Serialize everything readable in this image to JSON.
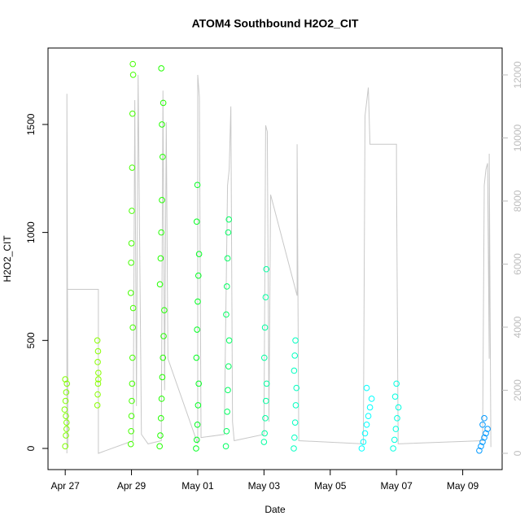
{
  "chart_data": {
    "type": "scatter",
    "title": "ATOM4 Southbound H2O2_CIT",
    "xlabel": "Date",
    "ylabel": "H2O2_CIT",
    "xlim": [
      -0.52,
      13.19
    ],
    "xticks": [
      {
        "value": 0,
        "label": "Apr 27"
      },
      {
        "value": 2,
        "label": "Apr 29"
      },
      {
        "value": 4,
        "label": "May 01"
      },
      {
        "value": 6,
        "label": "May 03"
      },
      {
        "value": 8,
        "label": "May 05"
      },
      {
        "value": 10,
        "label": "May 07"
      },
      {
        "value": 12,
        "label": "May 09"
      }
    ],
    "ylim": [
      -98,
      1854
    ],
    "yticks": [
      0,
      500,
      1000,
      1500
    ],
    "y2lim": [
      -516,
      12852
    ],
    "y2ticks": [
      0,
      2000,
      4000,
      6000,
      8000,
      10000,
      12000
    ],
    "series": [
      {
        "type": "line",
        "axis": "y2",
        "color": "#c8c8c8",
        "x": [
          0.05,
          0.05,
          0.08,
          0.05,
          1.0,
          1.0,
          2.05,
          2.1,
          2.15,
          2.2,
          2.3,
          2.5,
          2.9,
          2.95,
          3.0,
          3.05,
          3.1,
          4.0,
          4.0,
          4.05,
          4.1,
          4.8,
          4.9,
          4.95,
          5.0,
          5.05,
          5.1,
          6.0,
          6.05,
          6.1,
          6.15,
          6.2,
          7.0,
          7.0,
          7.05,
          9.0,
          9.05,
          9.15,
          9.2,
          10.0,
          10.0,
          10.05,
          12.6,
          12.65,
          12.7,
          12.75,
          12.8,
          12.8,
          12.85
        ],
        "values": [
          0,
          11400,
          200,
          5200,
          5200,
          0,
          400,
          11200,
          1500,
          12000,
          600,
          300,
          400,
          11500,
          2000,
          10500,
          3000,
          300,
          12000,
          11300,
          500,
          600,
          8500,
          9000,
          11000,
          1000,
          400,
          600,
          10400,
          10200,
          1000,
          8200,
          5000,
          9800,
          400,
          300,
          10700,
          11600,
          9800,
          9800,
          9000,
          300,
          400,
          8500,
          9000,
          9200,
          3000,
          9500,
          200
        ]
      },
      {
        "color": "#80ff00",
        "x": [
          0.0,
          0.02,
          0.04,
          -0.02,
          0.01,
          0.03,
          0.05,
          0.0,
          0.02,
          0.04
        ],
        "values": [
          10,
          60,
          120,
          180,
          220,
          260,
          300,
          320,
          150,
          90
        ]
      },
      {
        "color": "#88ff00",
        "x": [
          0.97,
          0.98,
          0.99,
          1.0,
          0.98,
          0.99,
          0.97,
          1.0
        ],
        "values": [
          200,
          250,
          300,
          350,
          400,
          450,
          500,
          320
        ]
      },
      {
        "color": "#44ff00",
        "x": [
          1.98,
          1.99,
          2.0,
          2.01,
          2.02,
          2.03,
          2.04,
          2.05,
          1.98,
          1.99,
          2.0,
          2.01,
          2.02,
          2.03,
          2.04,
          2.05
        ],
        "values": [
          20,
          80,
          150,
          220,
          300,
          420,
          560,
          650,
          720,
          860,
          950,
          1100,
          1300,
          1550,
          1780,
          1730
        ]
      },
      {
        "color": "#22ff00",
        "x": [
          2.85,
          2.87,
          2.89,
          2.91,
          2.93,
          2.95,
          2.97,
          2.99,
          2.86,
          2.88,
          2.9,
          2.92,
          2.94,
          2.96,
          2.9,
          2.92
        ],
        "values": [
          10,
          60,
          140,
          230,
          330,
          420,
          520,
          640,
          760,
          880,
          1000,
          1150,
          1350,
          1600,
          1760,
          1500
        ]
      },
      {
        "color": "#00ff20",
        "x": [
          3.95,
          3.97,
          3.99,
          4.01,
          4.03,
          3.96,
          3.98,
          4.0,
          4.02,
          4.04,
          3.97,
          3.99
        ],
        "values": [
          0,
          40,
          110,
          200,
          300,
          420,
          550,
          680,
          800,
          900,
          1050,
          1220
        ]
      },
      {
        "color": "#00ff60",
        "x": [
          4.85,
          4.87,
          4.89,
          4.91,
          4.93,
          4.95,
          4.86,
          4.88,
          4.9,
          4.92,
          4.94
        ],
        "values": [
          10,
          80,
          170,
          270,
          380,
          500,
          620,
          750,
          880,
          1000,
          1060
        ]
      },
      {
        "color": "#00ffa0",
        "x": [
          6.0,
          6.02,
          6.04,
          6.06,
          6.08,
          6.01,
          6.03,
          6.05,
          6.07
        ],
        "values": [
          30,
          70,
          140,
          220,
          300,
          420,
          560,
          700,
          830
        ]
      },
      {
        "color": "#00ffc0",
        "x": [
          6.9,
          6.92,
          6.94,
          6.96,
          6.98,
          6.91,
          6.93,
          6.95
        ],
        "values": [
          0,
          50,
          120,
          200,
          280,
          360,
          430,
          500
        ]
      },
      {
        "color": "#00ffff",
        "x": [
          8.95,
          9.0,
          9.05,
          9.1,
          9.15,
          9.2,
          9.25,
          9.1
        ],
        "values": [
          0,
          30,
          70,
          110,
          150,
          190,
          230,
          280
        ]
      },
      {
        "color": "#00ffe0",
        "x": [
          9.9,
          9.94,
          9.98,
          10.02,
          10.06,
          9.96,
          10.0
        ],
        "values": [
          0,
          40,
          90,
          140,
          190,
          240,
          300
        ]
      },
      {
        "color": "#0099ff",
        "x": [
          12.5,
          12.55,
          12.6,
          12.65,
          12.7,
          12.75,
          12.6,
          12.65
        ],
        "values": [
          -10,
          10,
          30,
          50,
          70,
          90,
          110,
          140
        ]
      }
    ]
  }
}
